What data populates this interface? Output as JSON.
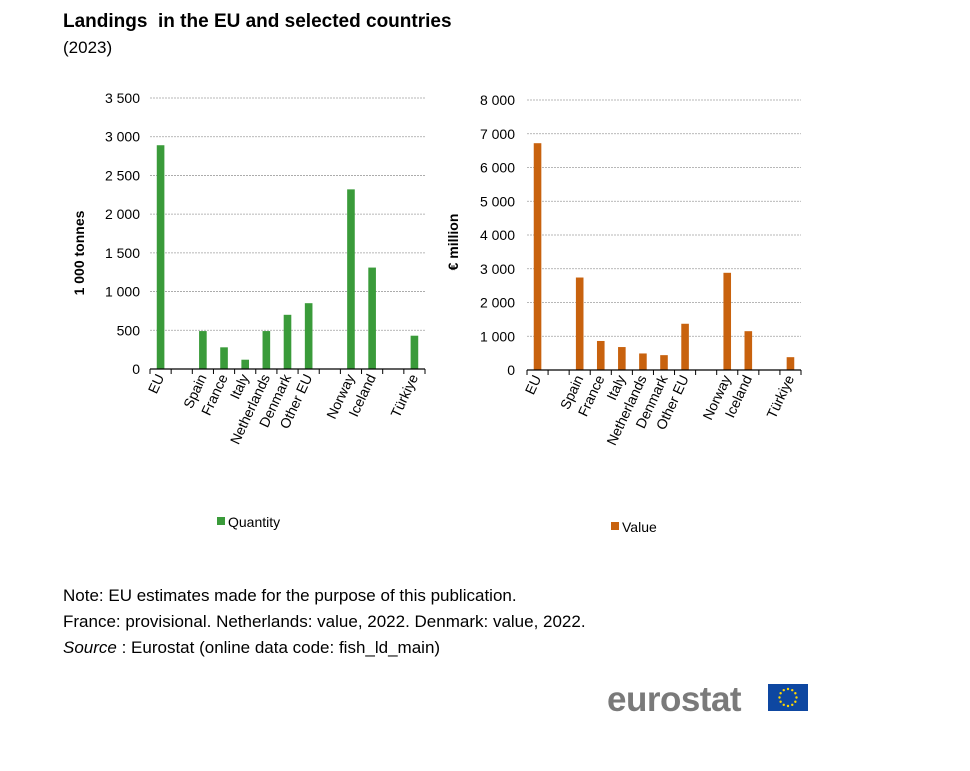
{
  "title": "Landings  in the EU and selected countries",
  "subtitle": "(2023)",
  "notes": {
    "line1": "Note: EU estimates made for the purpose of this publication.",
    "line2": "France: provisional. Netherlands: value, 2022. Denmark: value, 2022.",
    "source_label": "Source",
    "source_text": " : Eurostat (online data code: fish_ld_main)"
  },
  "logo": {
    "text": "eurostat"
  },
  "colors": {
    "quantity": "#3a9b3a",
    "value": "#c8620e",
    "grid": "#a0a0a0"
  },
  "chart_data": [
    {
      "type": "bar",
      "categories": [
        "EU",
        "",
        "Spain",
        "France",
        "Italy",
        "Netherlands",
        "Denmark",
        "Other EU",
        "",
        "Norway",
        "Iceland",
        "",
        "Türkiye"
      ],
      "series": [
        {
          "name": "Quantity",
          "values": [
            2890,
            null,
            490,
            280,
            120,
            490,
            700,
            850,
            null,
            2320,
            1310,
            null,
            430
          ]
        }
      ],
      "ylabel": "1 000 tonnes",
      "yticks": [
        0,
        500,
        1000,
        1500,
        2000,
        2500,
        3000,
        3500
      ],
      "ytick_labels": [
        "0",
        "500",
        "1 000",
        "1 500",
        "2 000",
        "2 500",
        "3 000",
        "3 500"
      ],
      "ylim": [
        0,
        3500
      ],
      "grid": true,
      "legend": "bottom"
    },
    {
      "type": "bar",
      "categories": [
        "EU",
        "",
        "Spain",
        "France",
        "Italy",
        "Netherlands",
        "Denmark",
        "Other EU",
        "",
        "Norway",
        "Iceland",
        "",
        "Türkiye"
      ],
      "series": [
        {
          "name": "Value",
          "values": [
            6720,
            null,
            2740,
            860,
            680,
            490,
            440,
            1370,
            null,
            2880,
            1150,
            null,
            380
          ]
        }
      ],
      "ylabel": "€ million",
      "yticks": [
        0,
        1000,
        2000,
        3000,
        4000,
        5000,
        6000,
        7000,
        8000
      ],
      "ytick_labels": [
        "0",
        "1 000",
        "2 000",
        "3 000",
        "4 000",
        "5 000",
        "6 000",
        "7 000",
        "8 000"
      ],
      "ylim": [
        0,
        8000
      ],
      "grid": true,
      "legend": "bottom"
    }
  ]
}
